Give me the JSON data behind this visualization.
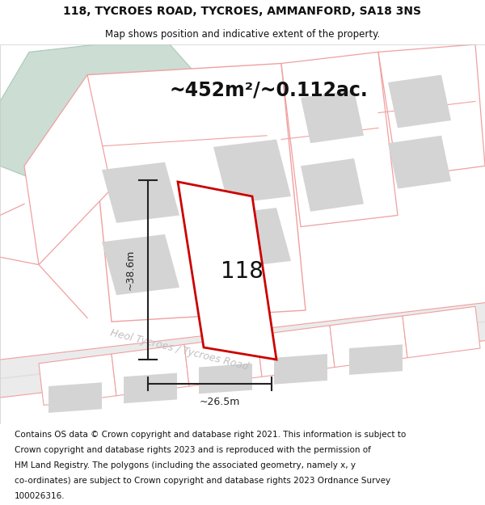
{
  "title_line1": "118, TYCROES ROAD, TYCROES, AMMANFORD, SA18 3NS",
  "title_line2": "Map shows position and indicative extent of the property.",
  "area_text": "~452m²/~0.112ac.",
  "label_118": "118",
  "dim_vertical": "~38.6m",
  "dim_horizontal": "~26.5m",
  "road_label": "Heol Tycroes / Tycroes Road",
  "footer_lines": [
    "Contains OS data © Crown copyright and database right 2021. This information is subject to",
    "Crown copyright and database rights 2023 and is reproduced with the permission of",
    "HM Land Registry. The polygons (including the associated geometry, namely x, y",
    "co-ordinates) are subject to Crown copyright and database rights 2023 Ordnance Survey",
    "100026316."
  ],
  "bg_white": "#ffffff",
  "map_bg": "#f7f7f7",
  "red_color": "#cc0000",
  "pink_color": "#f0a0a0",
  "pink_light": "#f5c0c0",
  "green_color": "#ccddd4",
  "green_edge": "#aac8b8",
  "gray_block": "#d4d4d4",
  "road_fill": "#ebebeb",
  "road_stripe": "#e0e0e0",
  "dim_color": "#222222",
  "road_text_color": "#c0c0c0",
  "title_fs": 10,
  "subtitle_fs": 8.5,
  "area_fs": 17,
  "label_fs": 20,
  "dim_fs": 9,
  "road_fs": 9,
  "footer_fs": 7.5
}
